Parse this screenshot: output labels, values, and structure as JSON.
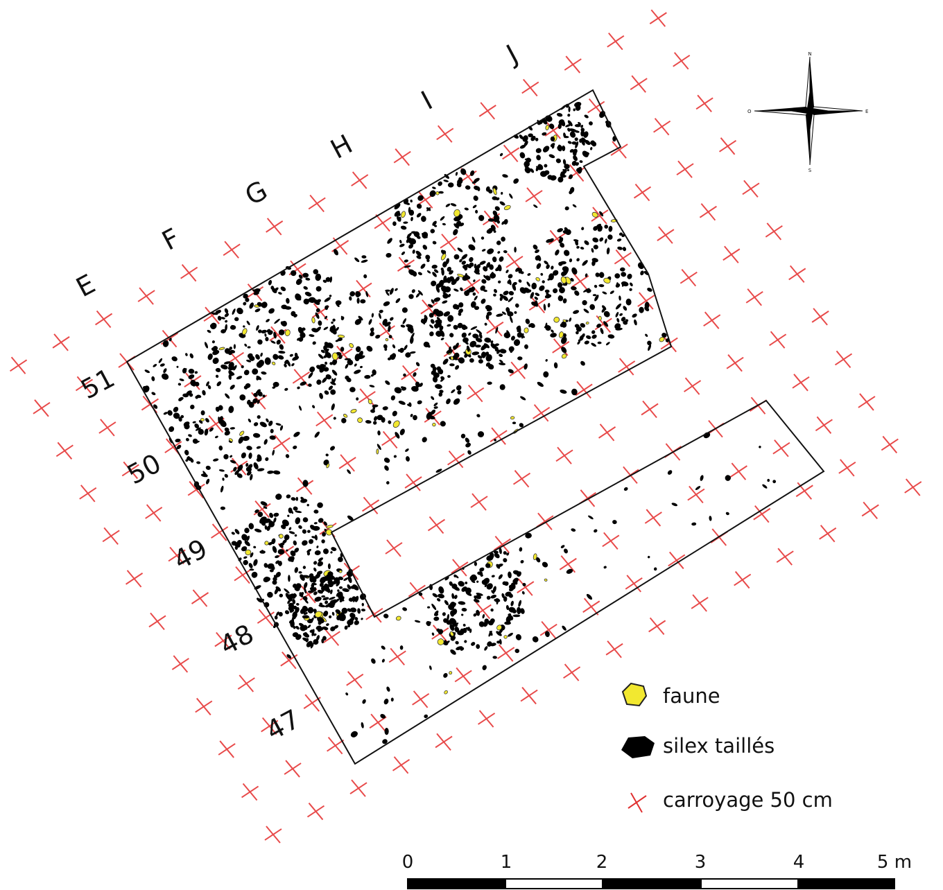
{
  "columns": [
    "E",
    "F",
    "G",
    "H",
    "I",
    "J"
  ],
  "rows": [
    "51",
    "50",
    "49",
    "48",
    "47"
  ],
  "compass": {
    "north": "N",
    "east": "E",
    "south": "S",
    "west": "O"
  },
  "legend": [
    {
      "label": "faune"
    },
    {
      "label": "silex taillés"
    },
    {
      "label": "carroyage 50 cm"
    }
  ],
  "scale_bar": {
    "labels": [
      "0",
      "1",
      "2",
      "3",
      "4",
      "5 m"
    ]
  }
}
